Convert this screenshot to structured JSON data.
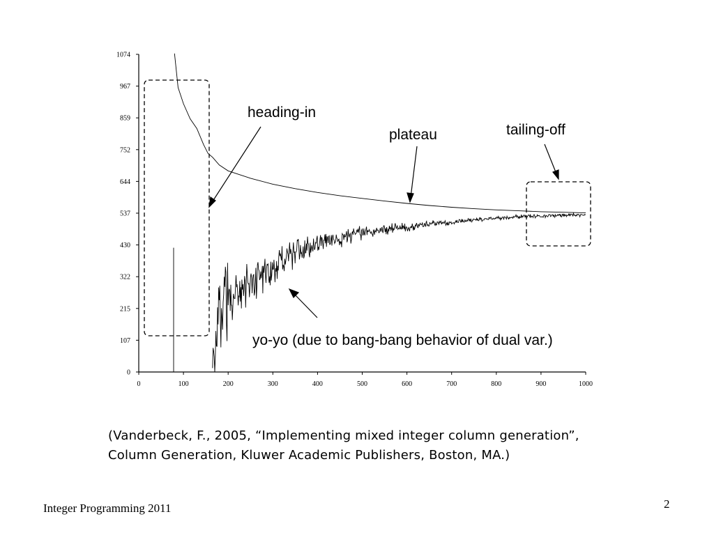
{
  "chart_data": {
    "type": "line",
    "title": "",
    "xlabel": "",
    "ylabel": "",
    "xlim": [
      0,
      1000
    ],
    "ylim": [
      0,
      1074
    ],
    "x_ticks": [
      "0",
      "100",
      "200",
      "300",
      "400",
      "500",
      "600",
      "700",
      "800",
      "900",
      "1000"
    ],
    "y_ticks": [
      "0",
      "107",
      "215",
      "322",
      "430",
      "537",
      "644",
      "752",
      "859",
      "967",
      "1074"
    ],
    "grid": false,
    "series": [
      {
        "name": "",
        "style": "solid, jagged",
        "points": [
          [
            78,
            0
          ],
          [
            78,
            420
          ],
          [
            78,
            0
          ],
          [
            165,
            0
          ],
          [
            170,
            60
          ],
          [
            175,
            150
          ],
          [
            180,
            200
          ],
          [
            190,
            230
          ],
          [
            200,
            245
          ],
          [
            220,
            270
          ],
          [
            250,
            300
          ],
          [
            280,
            330
          ],
          [
            300,
            355
          ],
          [
            340,
            390
          ],
          [
            380,
            420
          ],
          [
            420,
            440
          ],
          [
            460,
            455
          ],
          [
            500,
            470
          ],
          [
            550,
            482
          ],
          [
            600,
            490
          ],
          [
            650,
            500
          ],
          [
            700,
            508
          ],
          [
            750,
            515
          ],
          [
            800,
            520
          ],
          [
            850,
            525
          ],
          [
            900,
            528
          ],
          [
            950,
            530
          ],
          [
            1000,
            532
          ]
        ]
      },
      {
        "name": "",
        "style": "thin, decreasing",
        "points": [
          [
            80,
            1074
          ],
          [
            88,
            960
          ],
          [
            100,
            910
          ],
          [
            115,
            860
          ],
          [
            130,
            820
          ],
          [
            145,
            770
          ],
          [
            155,
            740
          ],
          [
            165,
            720
          ],
          [
            180,
            700
          ],
          [
            200,
            680
          ],
          [
            250,
            655
          ],
          [
            300,
            635
          ],
          [
            350,
            620
          ],
          [
            400,
            607
          ],
          [
            450,
            596
          ],
          [
            500,
            587
          ],
          [
            550,
            578
          ],
          [
            600,
            570
          ],
          [
            650,
            563
          ],
          [
            700,
            557
          ],
          [
            750,
            552
          ],
          [
            800,
            548
          ],
          [
            850,
            545
          ],
          [
            900,
            542
          ],
          [
            950,
            540
          ],
          [
            1000,
            538
          ]
        ]
      }
    ],
    "annotations": [
      "heading-in",
      "plateau",
      "tailing-off",
      "yo-yo (due to bang-bang behavior of dual var.)"
    ]
  },
  "citation": {
    "line1": "(Vanderbeck, F., 2005, “Implementing mixed integer column generation”,",
    "line2": "Column Generation, Kluwer Academic Publishers, Boston, MA.)"
  },
  "footer": {
    "left_text": "Integer Programming 2011",
    "page_number": "2"
  }
}
